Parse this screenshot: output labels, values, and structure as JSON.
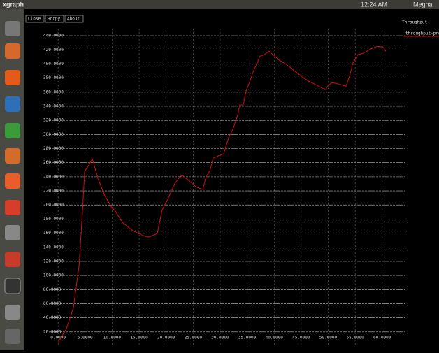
{
  "window": {
    "app_name": "xgraph",
    "time": "12:24 AM",
    "user": "Megha",
    "buttons": [
      "Close",
      "Hdcpy",
      "About"
    ]
  },
  "chart_data": {
    "type": "line",
    "title": "Throughput",
    "x": [
      0,
      1.55,
      2.84,
      3.88,
      4.53,
      4.91,
      5.69,
      6.34,
      7.37,
      8.66,
      9.96,
      10.6,
      11.9,
      13.84,
      15.78,
      16.81,
      18.36,
      19.27,
      20.31,
      21.6,
      22.89,
      24.19,
      25.48,
      26.77,
      27.42,
      28.06,
      28.71,
      29.61,
      30.65,
      31.55,
      32.33,
      33.23,
      33.62,
      34.27,
      34.79,
      35.56,
      36.21,
      36.86,
      37.37,
      38.15,
      39.05,
      40.09,
      40.99,
      42.29,
      43.58,
      44.87,
      46.17,
      47.46,
      48.49,
      49.4,
      50.04,
      50.69,
      51.98,
      53.28,
      53.92,
      54.57,
      55.47,
      56.5,
      57.8,
      59.09,
      60.13,
      60.65
    ],
    "series": [
      {
        "name": "throughput-pro_v",
        "color": "#d01010",
        "values": [
          5,
          24.8,
          54.5,
          113.9,
          193.2,
          247.6,
          256.6,
          265.5,
          237.7,
          213,
          196.1,
          191.2,
          175.3,
          163.4,
          156.5,
          154.5,
          159.5,
          193.2,
          208,
          230.8,
          242.7,
          234.8,
          225.9,
          221.9,
          240.7,
          247.6,
          266.5,
          269.4,
          272.4,
          295.2,
          307.1,
          326.9,
          341.8,
          341.8,
          361.6,
          376.4,
          391.3,
          401.2,
          411.1,
          413.1,
          418,
          411.1,
          405.2,
          399.2,
          391.3,
          383.4,
          376.4,
          371.5,
          367.5,
          363.5,
          369.5,
          373.5,
          371.5,
          368.5,
          381.4,
          401.2,
          413.1,
          415.1,
          421,
          425,
          424,
          418
        ]
      }
    ],
    "xlim": [
      -1.7,
      64.3
    ],
    "ylim": [
      0,
      450
    ],
    "xticks": [
      {
        "value": 0,
        "label": "0.0000"
      },
      {
        "value": 5,
        "label": "5.0000"
      },
      {
        "value": 10,
        "label": "10.0000"
      },
      {
        "value": 15,
        "label": "15.0000"
      },
      {
        "value": 20,
        "label": "20.0000"
      },
      {
        "value": 25,
        "label": "25.0000"
      },
      {
        "value": 30,
        "label": "30.0000"
      },
      {
        "value": 35,
        "label": "35.0000"
      },
      {
        "value": 40,
        "label": "40.0000"
      },
      {
        "value": 45,
        "label": "45.0000"
      },
      {
        "value": 50,
        "label": "50.0000"
      },
      {
        "value": 55,
        "label": "55.0000"
      },
      {
        "value": 60,
        "label": "60.0000"
      }
    ],
    "yticks": [
      {
        "value": 20,
        "label": "20.0000"
      },
      {
        "value": 40,
        "label": "40.0000"
      },
      {
        "value": 60,
        "label": "60.0000"
      },
      {
        "value": 80,
        "label": "80.0000"
      },
      {
        "value": 100,
        "label": "100.0000"
      },
      {
        "value": 120,
        "label": "120.0000"
      },
      {
        "value": 140,
        "label": "140.0000"
      },
      {
        "value": 160,
        "label": "160.0000"
      },
      {
        "value": 180,
        "label": "180.0000"
      },
      {
        "value": 200,
        "label": "200.0000"
      },
      {
        "value": 220,
        "label": "220.0000"
      },
      {
        "value": 240,
        "label": "240.0000"
      },
      {
        "value": 260,
        "label": "260.0000"
      },
      {
        "value": 280,
        "label": "280.0000"
      },
      {
        "value": 300,
        "label": "300.0000"
      },
      {
        "value": 320,
        "label": "320.0000"
      },
      {
        "value": 340,
        "label": "340.0000"
      },
      {
        "value": 360,
        "label": "360.0000"
      },
      {
        "value": 380,
        "label": "380.0000"
      },
      {
        "value": 400,
        "label": "400.0000"
      },
      {
        "value": 420,
        "label": "420.0000"
      },
      {
        "value": 440,
        "label": "440.0000"
      }
    ],
    "grid": true
  }
}
